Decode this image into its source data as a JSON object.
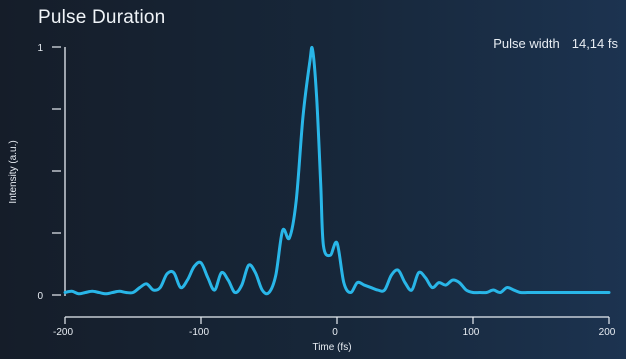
{
  "header": {
    "title": "Pulse Duration",
    "readout_label": "Pulse width",
    "readout_value": "14,14 fs"
  },
  "chart_data": {
    "type": "line",
    "title": "Pulse Duration",
    "xlabel": "Time (fs)",
    "ylabel": "Intensity (a.u.)",
    "xlim": [
      -200,
      200
    ],
    "ylim": [
      0,
      1
    ],
    "x_ticks": [
      -200,
      -100,
      0,
      100,
      200
    ],
    "x_tick_labels": [
      "-200",
      "-100",
      "0",
      "100",
      "200"
    ],
    "y_ticks": [
      0,
      0.25,
      0.5,
      0.75,
      1
    ],
    "y_tick_labels": [
      "0",
      "",
      "",
      "",
      "1"
    ],
    "grid": false,
    "series": [
      {
        "color": "#29b6e8",
        "x": [
          -200,
          -195,
          -190,
          -185,
          -180,
          -175,
          -170,
          -165,
          -160,
          -155,
          -150,
          -145,
          -140,
          -135,
          -130,
          -125,
          -120,
          -115,
          -110,
          -105,
          -100,
          -95,
          -90,
          -85,
          -80,
          -75,
          -70,
          -65,
          -60,
          -55,
          -50,
          -45,
          -40,
          -35,
          -30,
          -25,
          -20,
          -18,
          -15,
          -12,
          -10,
          -5,
          0,
          5,
          10,
          15,
          20,
          25,
          30,
          35,
          40,
          45,
          50,
          55,
          60,
          65,
          70,
          75,
          80,
          85,
          90,
          95,
          100,
          105,
          110,
          115,
          120,
          125,
          130,
          135,
          140,
          145,
          150,
          155,
          160,
          165,
          170,
          175,
          180,
          185,
          190,
          195,
          200
        ],
        "y": [
          0.01,
          0.015,
          0.005,
          0.01,
          0.015,
          0.01,
          0.005,
          0.01,
          0.015,
          0.01,
          0.01,
          0.03,
          0.045,
          0.02,
          0.03,
          0.085,
          0.09,
          0.03,
          0.06,
          0.115,
          0.13,
          0.07,
          0.02,
          0.09,
          0.06,
          0.01,
          0.04,
          0.12,
          0.09,
          0.02,
          0.01,
          0.08,
          0.26,
          0.23,
          0.38,
          0.72,
          0.94,
          0.99,
          0.8,
          0.45,
          0.2,
          0.16,
          0.21,
          0.05,
          0.01,
          0.05,
          0.04,
          0.03,
          0.02,
          0.02,
          0.08,
          0.1,
          0.05,
          0.02,
          0.09,
          0.07,
          0.03,
          0.05,
          0.04,
          0.06,
          0.05,
          0.02,
          0.01,
          0.01,
          0.01,
          0.02,
          0.01,
          0.03,
          0.02,
          0.01,
          0.01,
          0.01,
          0.01,
          0.01,
          0.01,
          0.01,
          0.01,
          0.01,
          0.01,
          0.01,
          0.01,
          0.01,
          0.01
        ]
      }
    ]
  }
}
